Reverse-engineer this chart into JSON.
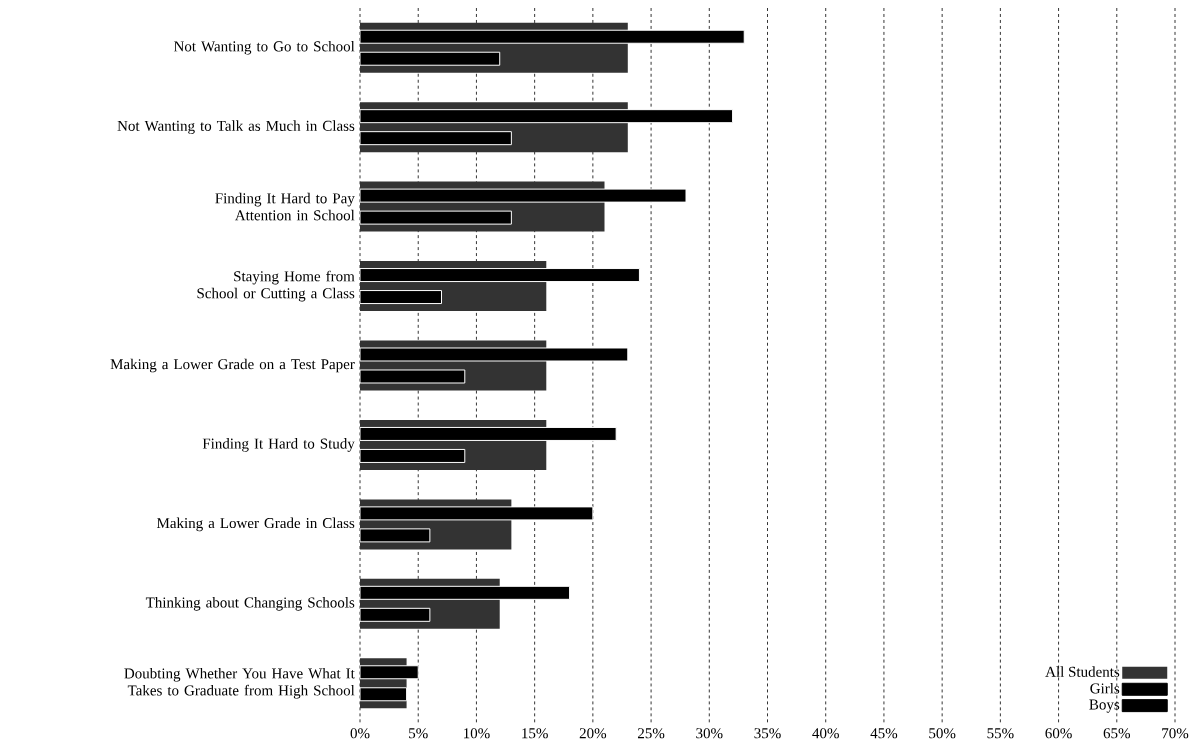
{
  "chart_data": {
    "type": "bar",
    "orientation": "horizontal",
    "categories": [
      "Not Wanting to Go to School",
      "Not Wanting to Talk as Much in Class",
      "Finding It Hard to Pay Attention in School",
      "Staying Home from School or Cutting a Class",
      "Making a Lower Grade on a Test Paper",
      "Finding It Hard to Study",
      "Making a Lower Grade in Class",
      "Thinking about Changing Schools",
      "Doubting Whether You Have What It Takes to Graduate from High School"
    ],
    "series": [
      {
        "name": "All Students",
        "color": "#333333",
        "values": [
          23,
          23,
          21,
          16,
          16,
          16,
          13,
          12,
          4
        ]
      },
      {
        "name": "Girls",
        "color": "#000000",
        "values": [
          33,
          32,
          28,
          24,
          23,
          22,
          20,
          18,
          5
        ]
      },
      {
        "name": "Boys",
        "color": "#000000",
        "values": [
          12,
          13,
          13,
          7,
          9,
          9,
          6,
          6,
          4
        ]
      }
    ],
    "xlim": [
      0,
      70
    ],
    "xticks": [
      {
        "value": 0,
        "label": "0%"
      },
      {
        "value": 5,
        "label": "5%"
      },
      {
        "value": 10,
        "label": "10%"
      },
      {
        "value": 15,
        "label": "15%"
      },
      {
        "value": 20,
        "label": "20%"
      },
      {
        "value": 25,
        "label": "25%"
      },
      {
        "value": 30,
        "label": "30%"
      },
      {
        "value": 35,
        "label": "35%"
      },
      {
        "value": 40,
        "label": "40%"
      },
      {
        "value": 45,
        "label": "45%"
      },
      {
        "value": 50,
        "label": "50%"
      },
      {
        "value": 55,
        "label": "55%"
      },
      {
        "value": 60,
        "label": "60%"
      },
      {
        "value": 65,
        "label": "65%"
      },
      {
        "value": 70,
        "label": "70%"
      }
    ],
    "grid": "x",
    "legend": "bottom right"
  }
}
